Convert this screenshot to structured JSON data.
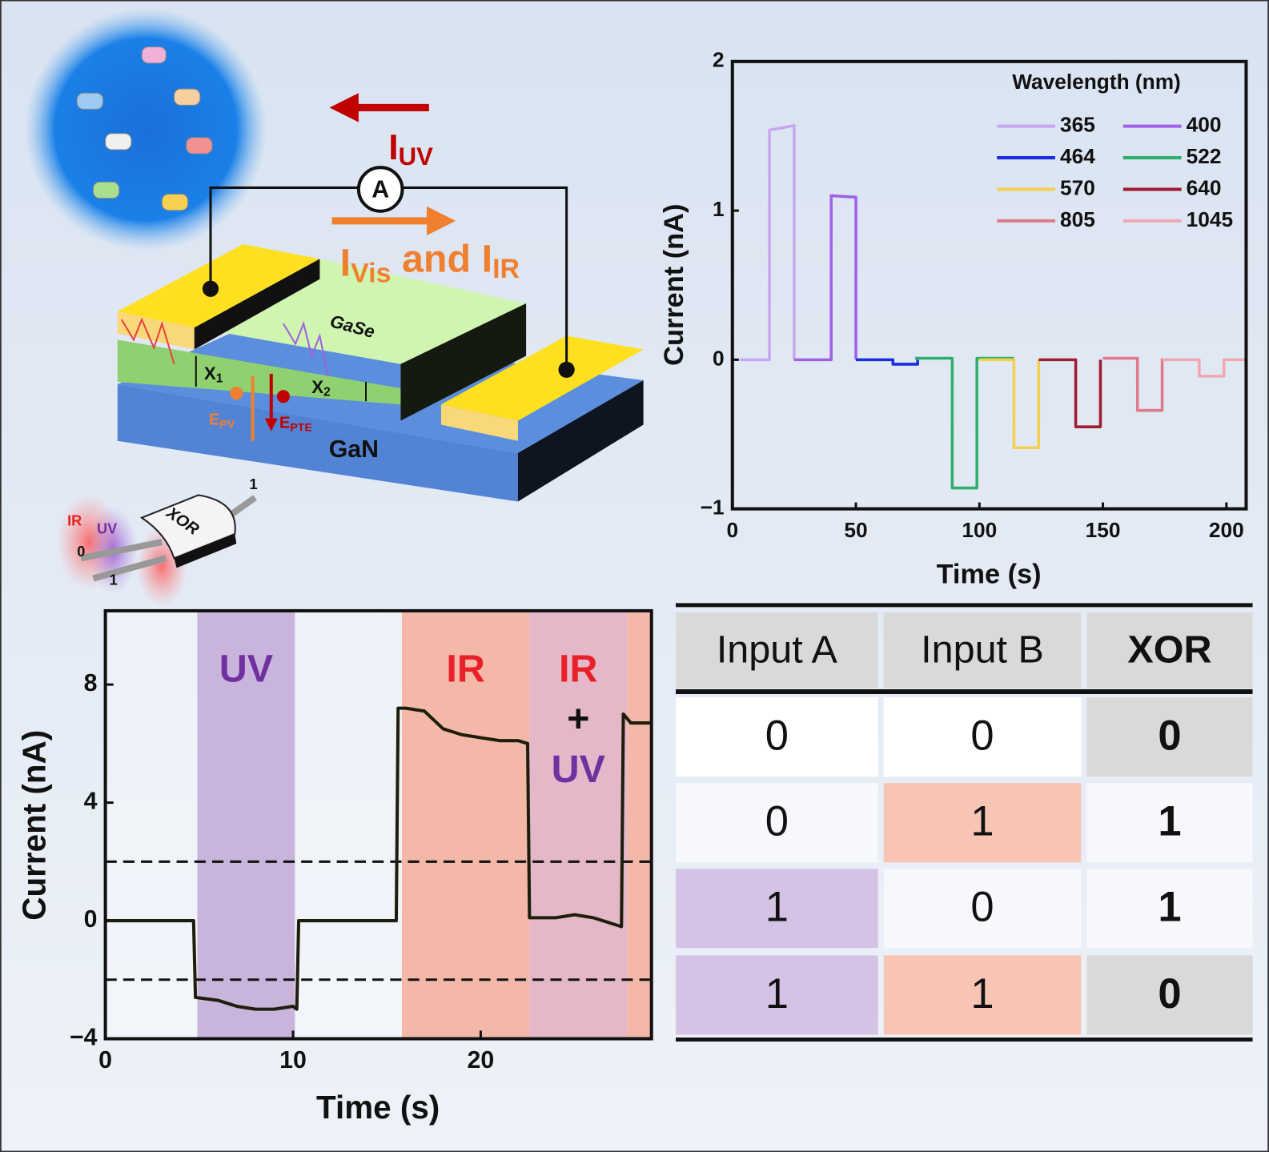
{
  "chart_data": [
    {
      "type": "line",
      "xlabel": "Time (s)",
      "ylabel": "Current (nA)",
      "legend_title": "Wavelength (nm)",
      "xlim": [
        0,
        208
      ],
      "ylim": [
        -1,
        2
      ],
      "xticks": [
        0,
        50,
        100,
        150,
        200
      ],
      "yticks": [
        {
          "value": -1,
          "label": "−1"
        },
        0,
        1,
        2
      ],
      "series": [
        {
          "name": "365",
          "color": "#c9a6f0",
          "x": [
            3,
            15,
            15,
            25,
            25
          ],
          "values": [
            0,
            0,
            1.54,
            1.57,
            0
          ]
        },
        {
          "name": "400",
          "color": "#a060e8",
          "x": [
            25,
            40,
            40,
            50,
            50
          ],
          "values": [
            0,
            0,
            1.1,
            1.09,
            0
          ]
        },
        {
          "name": "464",
          "color": "#1a2ee0",
          "x": [
            50,
            65,
            65,
            75,
            75
          ],
          "values": [
            0,
            0,
            -0.03,
            -0.03,
            0
          ]
        },
        {
          "name": "522",
          "color": "#2eb06a",
          "x": [
            74,
            89,
            89,
            99,
            99,
            114
          ],
          "values": [
            0.01,
            0.01,
            -0.86,
            -0.86,
            0.01,
            0.01
          ]
        },
        {
          "name": "570",
          "color": "#f5d050",
          "x": [
            100,
            114,
            114,
            124,
            124
          ],
          "values": [
            0,
            0,
            -0.59,
            -0.59,
            0
          ]
        },
        {
          "name": "640",
          "color": "#a01c30",
          "x": [
            124,
            139,
            139,
            149,
            149
          ],
          "values": [
            0,
            0,
            -0.45,
            -0.45,
            0
          ]
        },
        {
          "name": "805",
          "color": "#e07a8a",
          "x": [
            150,
            164,
            164,
            174,
            174
          ],
          "values": [
            0.01,
            0.01,
            -0.34,
            -0.34,
            0.01
          ]
        },
        {
          "name": "1045",
          "color": "#f0a8b0",
          "x": [
            174,
            189,
            189,
            199,
            199,
            208
          ],
          "values": [
            0,
            0,
            -0.11,
            -0.11,
            0,
            0
          ]
        }
      ]
    },
    {
      "type": "line",
      "xlabel": "Time (s)",
      "ylabel": "Current (nA)",
      "xlim": [
        0,
        29.1
      ],
      "ylim": [
        -4,
        10.5
      ],
      "xticks": [
        0,
        10,
        20
      ],
      "yticks": [
        {
          "value": -4,
          "label": "−4"
        },
        0,
        4,
        8
      ],
      "color": "#1e1e0c",
      "x": [
        0,
        4.7,
        4.8,
        6,
        7,
        8,
        9,
        10,
        10.2,
        10.3,
        15.5,
        15.6,
        16,
        17,
        18,
        19,
        20,
        21,
        22,
        22.5,
        22.6,
        23,
        24,
        25,
        26,
        27,
        27.5,
        27.6,
        28,
        29.1
      ],
      "values": [
        0,
        0,
        -2.6,
        -2.7,
        -2.9,
        -3,
        -3,
        -2.9,
        -3,
        0,
        0,
        7.2,
        7.2,
        7.1,
        6.5,
        6.3,
        6.2,
        6.1,
        6.1,
        6.0,
        0.1,
        0.1,
        0.1,
        0.2,
        0.1,
        -0.1,
        -0.2,
        7.0,
        6.7,
        6.7
      ],
      "thresholds": [
        2,
        -2
      ],
      "regions": [
        {
          "start": 4.9,
          "end": 10.1,
          "color": "#c9b4dc",
          "labels": [
            {
              "text": "UV",
              "color": "#7030a0"
            }
          ]
        },
        {
          "start": 15.8,
          "end": 22.6,
          "color": "#f4b8a8",
          "labels": [
            {
              "text": "IR",
              "color": "#e8202a"
            }
          ]
        },
        {
          "start": 22.6,
          "end": 27.8,
          "color": "#e4b8c8",
          "labels": [
            {
              "text": "IR",
              "color": "#e8202a"
            },
            {
              "text": "+",
              "color": "#111111"
            },
            {
              "text": "UV",
              "color": "#7030a0"
            }
          ]
        },
        {
          "start": 27.8,
          "end": 29.1,
          "color": "#f4b8a8"
        }
      ]
    }
  ],
  "diagram": {
    "current_uv": [
      {
        "text": "I"
      },
      {
        "text": "UV",
        "sub": true
      }
    ],
    "current_vis_ir": [
      {
        "text": "I"
      },
      {
        "text": "Vis",
        "sub": true
      },
      {
        "text": " and I"
      },
      {
        "text": "IR",
        "sub": true
      }
    ],
    "ammeter": "A",
    "gase": "GaSe",
    "gan": "GaN",
    "x1": [
      {
        "text": "X"
      },
      {
        "text": "1",
        "sub": true
      }
    ],
    "x2": [
      {
        "text": "X"
      },
      {
        "text": "2",
        "sub": true
      }
    ],
    "e_pv": [
      {
        "text": "E"
      },
      {
        "text": "PV",
        "sub": true
      }
    ],
    "e_pte": [
      {
        "text": "E"
      },
      {
        "text": "PTE",
        "sub": true
      }
    ],
    "gate": {
      "ir": "IR",
      "uv": "UV",
      "input_0": "0",
      "input_1": "1",
      "output": "1",
      "name": "XOR"
    }
  },
  "table": {
    "header": [
      "Input A",
      "Input B",
      "XOR"
    ],
    "rows": [
      [
        "0",
        "0",
        "0"
      ],
      [
        "0",
        "1",
        "1"
      ],
      [
        "1",
        "0",
        "1"
      ],
      [
        "1",
        "1",
        "0"
      ]
    ]
  }
}
